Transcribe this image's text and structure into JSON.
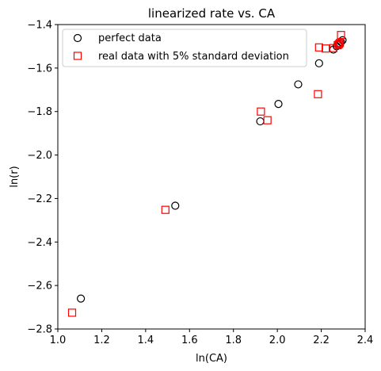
{
  "chart_data": {
    "type": "scatter",
    "title": "linearized rate vs. CA",
    "xlabel": "ln(CA)",
    "ylabel": "ln(r)",
    "xlim": [
      1.0,
      2.4
    ],
    "ylim": [
      -2.8,
      -1.4
    ],
    "xticks": [
      1.0,
      1.2,
      1.4,
      1.6,
      1.8,
      2.0,
      2.2,
      2.4
    ],
    "xtick_labels": [
      "1.0",
      "1.2",
      "1.4",
      "1.6",
      "1.8",
      "2.0",
      "2.2",
      "2.4"
    ],
    "yticks": [
      -2.8,
      -2.6,
      -2.4,
      -2.2,
      -2.0,
      -1.8,
      -1.6,
      -1.4
    ],
    "ytick_labels": [
      "−2.8",
      "−2.6",
      "−2.4",
      "−2.2",
      "−2.0",
      "−1.8",
      "−1.6",
      "−1.4"
    ],
    "grid": false,
    "legend_position": "top-left",
    "series": [
      {
        "name": "perfect data",
        "marker": "circle",
        "color": "#000000",
        "x": [
          1.105,
          1.535,
          1.922,
          2.005,
          2.095,
          2.19,
          2.255,
          2.27,
          2.28,
          2.285,
          2.29,
          2.297
        ],
        "y": [
          -2.66,
          -2.233,
          -1.845,
          -1.765,
          -1.675,
          -1.578,
          -1.515,
          -1.5,
          -1.492,
          -1.486,
          -1.48,
          -1.472
        ]
      },
      {
        "name": "real data with 5% standard deviation",
        "marker": "square",
        "color": "#ff0000",
        "x": [
          1.065,
          1.49,
          1.925,
          1.955,
          2.185,
          2.19,
          2.22,
          2.255,
          2.275,
          2.28,
          2.285,
          2.29
        ],
        "y": [
          -2.725,
          -2.252,
          -1.8,
          -1.84,
          -1.72,
          -1.505,
          -1.51,
          -1.508,
          -1.495,
          -1.49,
          -1.485,
          -1.448
        ]
      }
    ]
  }
}
